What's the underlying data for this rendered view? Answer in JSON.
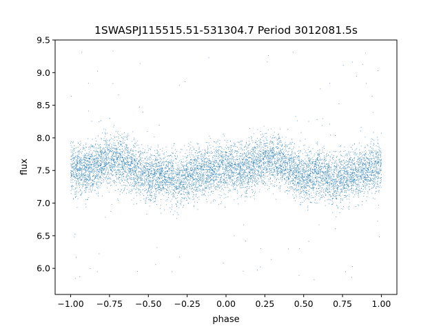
{
  "chart_data": {
    "type": "scatter",
    "title": "1SWASPJ115515.51-531304.7 Period 3012081.5s",
    "xlabel": "phase",
    "ylabel": "flux",
    "xlim": [
      -1.1,
      1.1
    ],
    "ylim": [
      5.6,
      9.5
    ],
    "xticks": [
      -1.0,
      -0.75,
      -0.5,
      -0.25,
      0.0,
      0.25,
      0.5,
      0.75,
      1.0
    ],
    "xtick_labels": [
      "−1.00",
      "−0.75",
      "−0.50",
      "−0.25",
      "0.00",
      "0.25",
      "0.50",
      "0.75",
      "1.00"
    ],
    "yticks": [
      6.0,
      6.5,
      7.0,
      7.5,
      8.0,
      8.5,
      9.0,
      9.5
    ],
    "ytick_labels": [
      "6.0",
      "6.5",
      "7.0",
      "7.5",
      "8.0",
      "8.5",
      "9.0",
      "9.5"
    ],
    "grid": false,
    "point_color": "#1f77b4",
    "series": [
      {
        "phase_range": [
          -1.0,
          1.0
        ],
        "median_flux": 7.55,
        "profile": {
          "phase": [
            0.0,
            0.1,
            0.2,
            0.3,
            0.4,
            0.5,
            0.6,
            0.7,
            0.8,
            0.9,
            1.0
          ],
          "flux": [
            7.55,
            7.5,
            7.62,
            7.68,
            7.55,
            7.4,
            7.45,
            7.35,
            7.45,
            7.5,
            7.55
          ]
        },
        "typical_flux_range": [
          6.9,
          8.3
        ],
        "outlier_flux_range": [
          5.8,
          9.35
        ],
        "n_points": 9000
      }
    ]
  }
}
